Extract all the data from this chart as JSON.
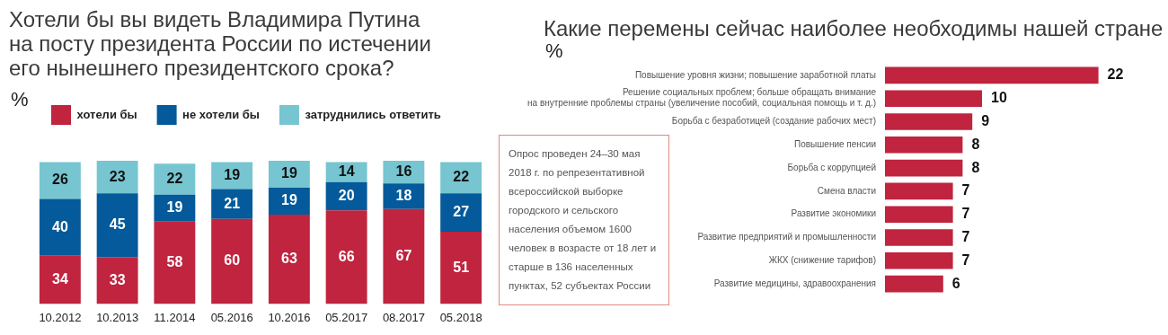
{
  "chart_data": [
    {
      "type": "bar",
      "title": "Хотели бы вы видеть Владимира Путина на посту президента России по истечении его нынешнего президентского срока?",
      "subtitle": "%",
      "categories": [
        "10.2012",
        "10.2013",
        "11.2014",
        "05.2016",
        "10.2016",
        "05.2017",
        "08.2017",
        "05.2018"
      ],
      "stacked": true,
      "legend": "top left",
      "data_labels": true,
      "grid": false,
      "tick_labels": "x",
      "series": [
        {
          "name": "хотели бы",
          "color": "#c0243e",
          "values": [
            34,
            33,
            58,
            60,
            63,
            66,
            67,
            51
          ]
        },
        {
          "name": "не хотели бы",
          "color": "#045a9a",
          "values": [
            40,
            45,
            19,
            21,
            19,
            20,
            18,
            27
          ]
        },
        {
          "name": "затруднились ответить",
          "color": "#76c5d1",
          "values": [
            26,
            23,
            22,
            19,
            19,
            14,
            16,
            22
          ]
        }
      ]
    },
    {
      "type": "bar",
      "orientation": "horizontal",
      "title": "Какие перемены сейчас наиболее необходимы нашей стране",
      "subtitle": "%",
      "categories": [
        "Повышение уровня жизни; повышение заработной платы",
        "Решение социальных проблем; больше обращать внимание\nна внутренние проблемы страны (увеличение пособий, социальная помощь и т. д.)",
        "Борьба с безработицей (создание рабочих мест)",
        "Повышение пенсии",
        "Борьба с коррупцией",
        "Смена власти",
        "Развитие экономики",
        "Развитие предприятий и промышленности",
        "ЖКХ (снижение тарифов)",
        "Развитие медицины, здравоохранения"
      ],
      "values": [
        22,
        10,
        9,
        8,
        8,
        7,
        7,
        7,
        7,
        6
      ],
      "color": "#c0243e",
      "data_labels": true,
      "grid": false,
      "tick_labels": "y",
      "legend": false,
      "annotations": [
        "Опрос проведен 24–30 мая 2018 г. по репрезентативной всероссийской выборке городского и сельского населения объемом 1600 человек в возрасте от 18 лет и старше в 136 населенных пунктах, 52 субъектах России"
      ]
    }
  ]
}
